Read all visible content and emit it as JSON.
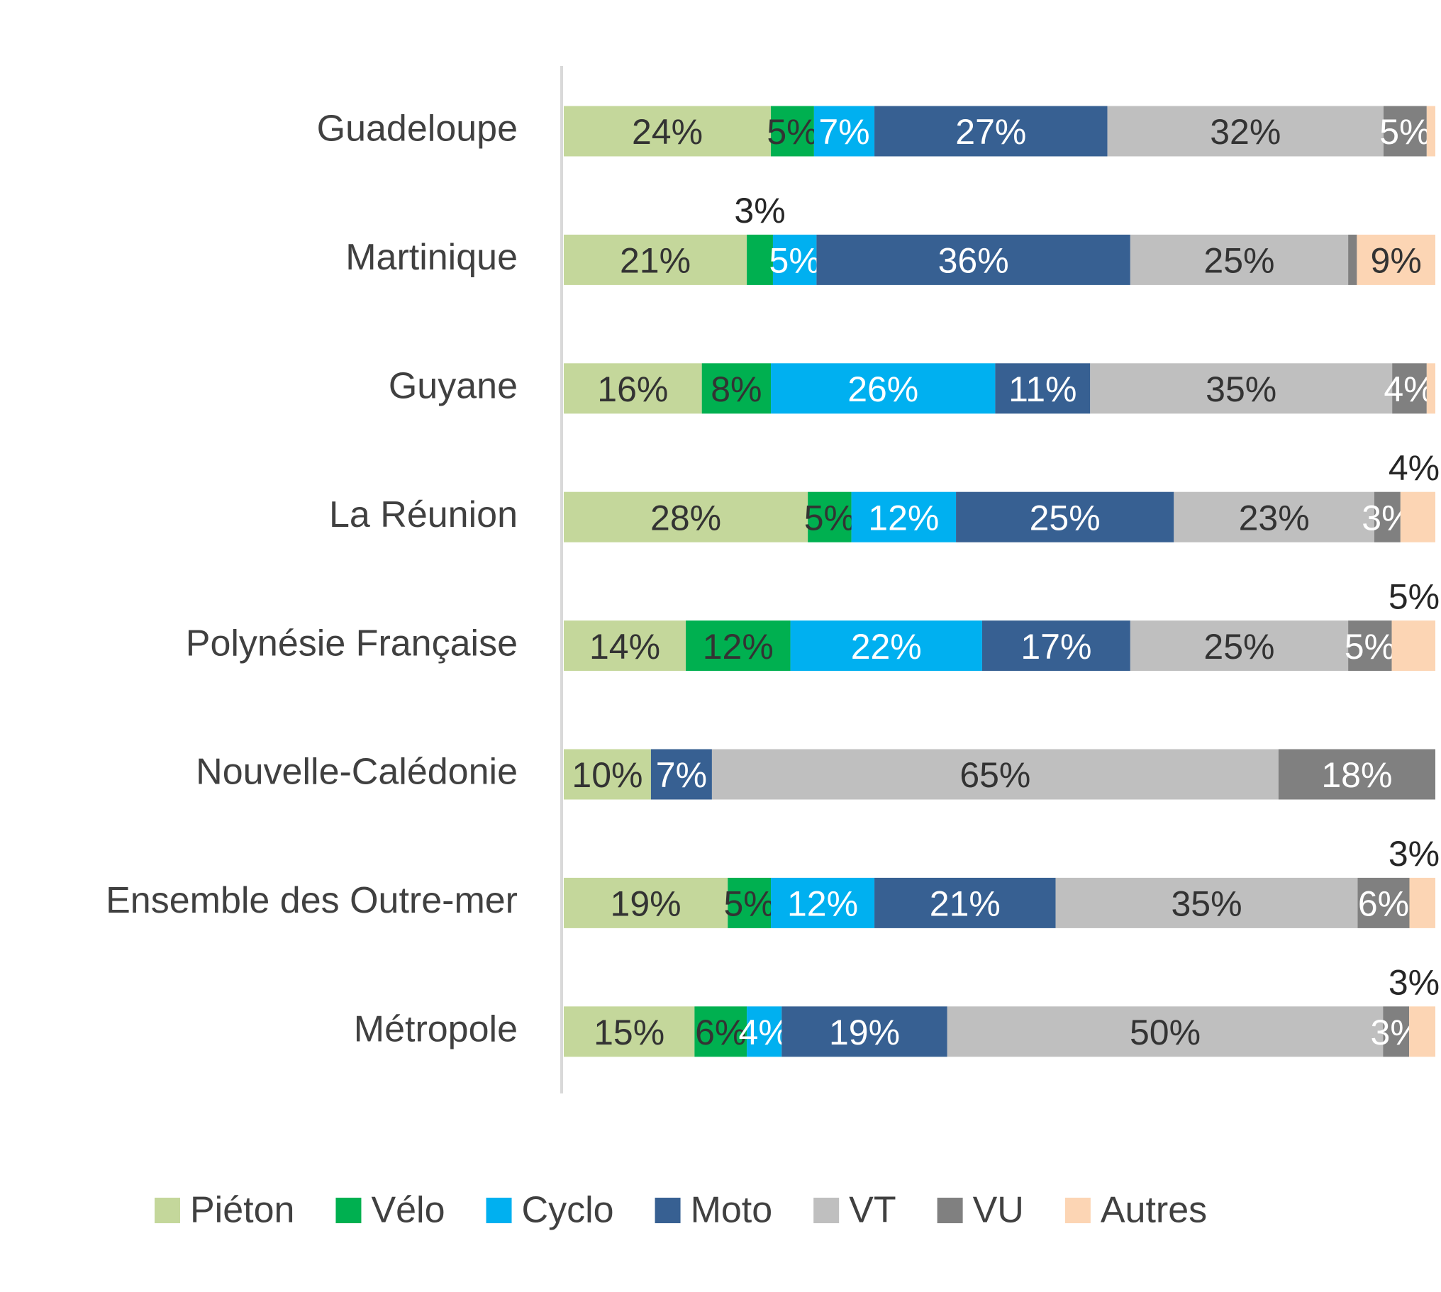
{
  "chart_data": {
    "type": "stacked-bar-100",
    "categories": [
      "Guadeloupe",
      "Martinique",
      "Guyane",
      "La Réunion",
      "Polynésie Française",
      "Nouvelle-Calédonie",
      "Ensemble des Outre-mer",
      "Métropole"
    ],
    "series": [
      {
        "name": "Piéton",
        "color": "#c4d79b",
        "label_color": "#333333",
        "values": [
          24,
          21,
          16,
          28,
          14,
          10,
          19,
          15
        ],
        "value_labels": [
          "24%",
          "21%",
          "16%",
          "28%",
          "14%",
          "10%",
          "19%",
          "15%"
        ]
      },
      {
        "name": "Vélo",
        "color": "#00b050",
        "label_color": "#333333",
        "values": [
          5,
          3,
          8,
          5,
          12,
          null,
          5,
          6
        ],
        "value_labels": [
          "5%",
          "3%",
          "8%",
          "5%",
          "12%",
          null,
          "5%",
          "6%"
        ]
      },
      {
        "name": "Cyclo",
        "color": "#00b0f0",
        "label_color": "#ffffff",
        "values": [
          7,
          5,
          26,
          12,
          22,
          null,
          12,
          4
        ],
        "value_labels": [
          "7%",
          "5%",
          "26%",
          "12%",
          "22%",
          null,
          "12%",
          "4%"
        ]
      },
      {
        "name": "Moto",
        "color": "#376092",
        "label_color": "#ffffff",
        "values": [
          27,
          36,
          11,
          25,
          17,
          7,
          21,
          19
        ],
        "value_labels": [
          "27%",
          "36%",
          "11%",
          "25%",
          "17%",
          "7%",
          "21%",
          "19%"
        ]
      },
      {
        "name": "VT",
        "color": "#bfbfbf",
        "label_color": "#333333",
        "values": [
          32,
          25,
          35,
          23,
          25,
          65,
          35,
          50
        ],
        "value_labels": [
          "32%",
          "25%",
          "35%",
          "23%",
          "25%",
          "65%",
          "35%",
          "50%"
        ]
      },
      {
        "name": "VU",
        "color": "#808080",
        "label_color": "#ffffff",
        "values": [
          5,
          1,
          4,
          3,
          5,
          18,
          6,
          3
        ],
        "value_labels": [
          "5%",
          null,
          "4%",
          "3%",
          "5%",
          "18%",
          "6%",
          "3%"
        ]
      },
      {
        "name": "Autres",
        "color": "#fcd5b4",
        "label_color": "#333333",
        "values": [
          1,
          9,
          1,
          4,
          5,
          null,
          3,
          3
        ],
        "value_labels": [
          null,
          "9%",
          null,
          "4%",
          "5%",
          null,
          "3%",
          "3%"
        ]
      }
    ],
    "legend": "bottom"
  }
}
